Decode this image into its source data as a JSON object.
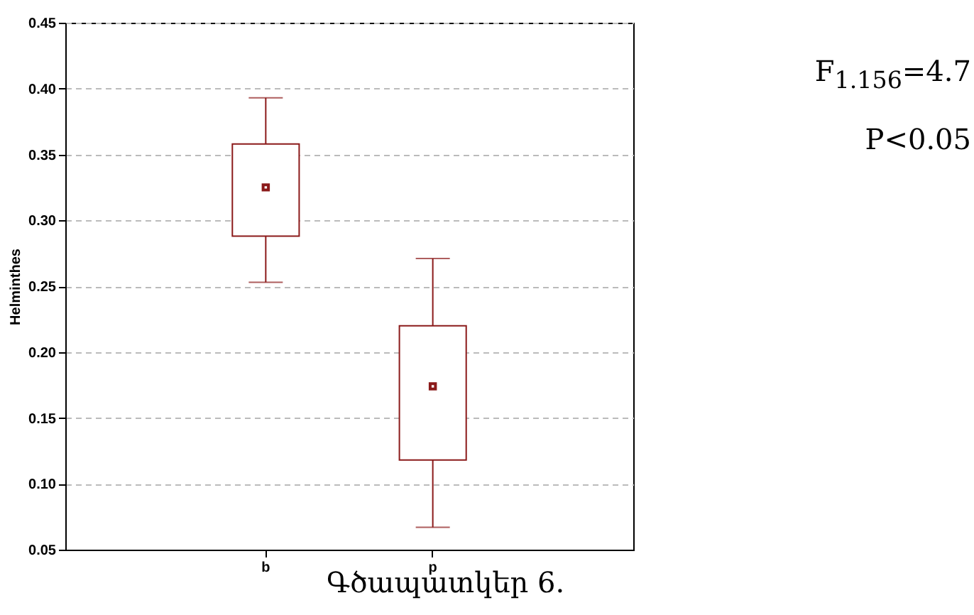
{
  "chart_data": {
    "type": "box",
    "ylabel": "Helminthes",
    "categories": [
      "b",
      "p"
    ],
    "color": "#8b1a1a",
    "boxes": [
      {
        "low": 0.253,
        "q1": 0.288,
        "median": 0.325,
        "q3": 0.358,
        "high": 0.393
      },
      {
        "low": 0.067,
        "q1": 0.118,
        "median": 0.174,
        "q3": 0.22,
        "high": 0.271
      }
    ],
    "ylim": [
      0.05,
      0.45
    ],
    "yticks": [
      0.05,
      {
        "value": 0.1,
        "label": "0.10"
      },
      0.15,
      {
        "value": 0.2,
        "label": "0.20"
      },
      0.25,
      {
        "value": 0.3,
        "label": "0.30"
      },
      0.35,
      {
        "value": 0.4,
        "label": "0.40"
      },
      0.45
    ],
    "grid": "y",
    "annotations": [
      "F$_{1.156}$=4.7",
      "P<0.05",
      "Գծապատկեր 6."
    ]
  }
}
